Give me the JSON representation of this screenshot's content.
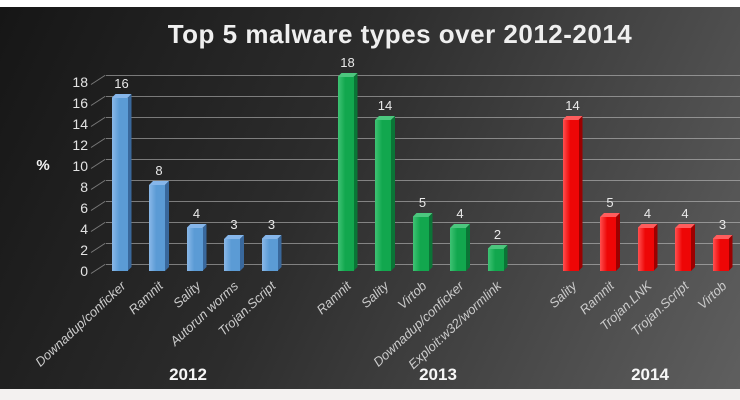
{
  "chart_data": {
    "type": "bar",
    "title": "Top 5 malware types over 2012-2014",
    "ylabel": "%",
    "ylim": [
      0,
      18
    ],
    "yticks": [
      0,
      2,
      4,
      6,
      8,
      10,
      12,
      14,
      16,
      18
    ],
    "grid": true,
    "legend": "none",
    "background": "dark gradient slide",
    "gridline_color": "#d4d4d4",
    "title_color": "#efefef",
    "tick_label_color": "#e3e3e3",
    "category_label_color": "#cbcbcb",
    "groups": [
      {
        "year": "2012",
        "color": "#5b9bd5",
        "color_light": "#8ab8e8",
        "color_dark": "#39689c",
        "color_top": "#86b6ea",
        "categories": [
          "Downadup/conficker",
          "Ramnit",
          "Sality",
          "Autorun worms",
          "Trojan.Script"
        ],
        "values": [
          16,
          8,
          4,
          3,
          3
        ]
      },
      {
        "year": "2013",
        "color": "#12a74e",
        "color_light": "#3fc374",
        "color_dark": "#0a7536",
        "color_top": "#4cc77e",
        "categories": [
          "Ramnit",
          "Sality",
          "Virtob",
          "Downadup/conficker",
          "Exploit:w32/wormlink"
        ],
        "values": [
          18,
          14,
          5,
          4,
          2
        ]
      },
      {
        "year": "2014",
        "color": "#ee0606",
        "color_light": "#ff5050",
        "color_dark": "#9c0000",
        "color_top": "#ff5d5d",
        "categories": [
          "Sality",
          "Ramnit",
          "Trojan.LNK",
          "Trojan.Script",
          "Virtob"
        ],
        "values": [
          14,
          5,
          4,
          4,
          3
        ]
      }
    ]
  }
}
